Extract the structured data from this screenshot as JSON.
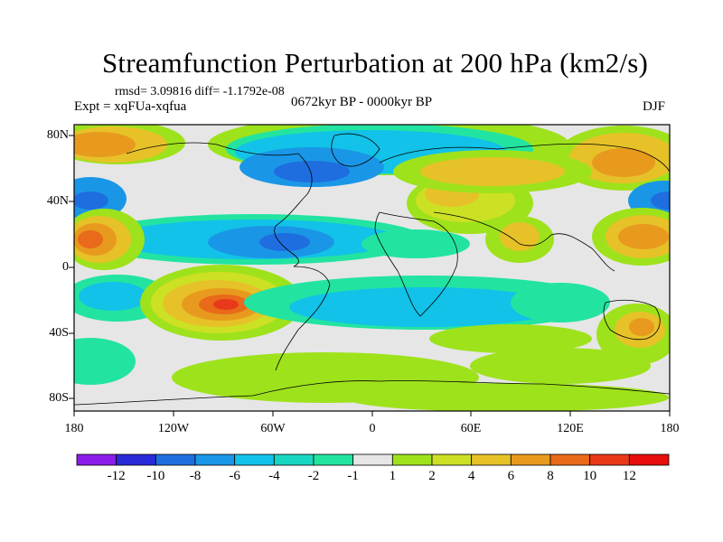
{
  "title": "Streamfunction Perturbation at 200 hPa (km2/s)",
  "stats": "rmsd= 3.09816 diff= -1.1792e-08",
  "experiment": "Expt = xqFUa-xqfua",
  "period": "0672kyr BP - 0000kyr BP",
  "season": "DJF",
  "lat_labels": [
    "80N",
    "40N",
    "0",
    "40S",
    "80S"
  ],
  "lon_labels": [
    "180",
    "120W",
    "60W",
    "0",
    "60E",
    "120E",
    "180"
  ],
  "colorbar": {
    "labels": [
      "-12",
      "-10",
      "-8",
      "-6",
      "-4",
      "-2",
      "-1",
      "1",
      "2",
      "4",
      "6",
      "8",
      "10",
      "12"
    ],
    "colors": [
      "#8a1ee8",
      "#2a2ad8",
      "#1e6ee0",
      "#1a96e6",
      "#12c2e8",
      "#18d6c2",
      "#22e4a0",
      "#e6e6e6",
      "#9ee21c",
      "#cce024",
      "#e6c228",
      "#e89a1e",
      "#e86a1a",
      "#e83a18",
      "#e80e0e"
    ]
  },
  "field_colors": {
    "background": "#e6e6e6",
    "green": "#9ee21c",
    "lime": "#cce024",
    "yellow": "#e6c228",
    "orange": "#e89a1e",
    "darkorange": "#e86a1a",
    "red": "#e83a18",
    "teal": "#22e4a0",
    "cyan": "#12c2e8",
    "sky": "#1a96e6",
    "blue": "#1e6ee0"
  }
}
